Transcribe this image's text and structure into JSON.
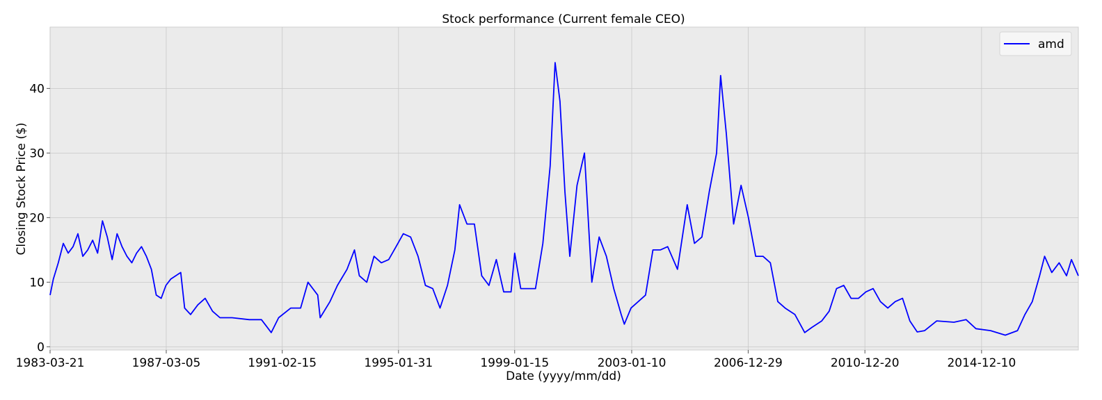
{
  "chart_data": {
    "type": "line",
    "title": "Stock performance (Current female CEO)",
    "xlabel": "Date (yyyy/mm/dd)",
    "ylabel": "Closing Stock Price ($)",
    "x_ticks": [
      "1983-03-21",
      "1987-03-05",
      "1991-02-15",
      "1995-01-31",
      "1999-01-15",
      "2003-01-10",
      "2006-12-29",
      "2010-12-20",
      "2014-12-10"
    ],
    "y_ticks": [
      0,
      10,
      20,
      30,
      40
    ],
    "ylim": [
      -0.5,
      49.5
    ],
    "xlim": [
      "1983-03-21",
      "2018-03-28"
    ],
    "grid": true,
    "legend_position": "top-right",
    "colors": {
      "line": "#0000ff",
      "plot_background": "#ebebeb",
      "grid": "#c8c8c8"
    },
    "series": [
      {
        "name": "amd",
        "points": [
          [
            "1983-03-21",
            8.0
          ],
          [
            "1983-05-01",
            10.5
          ],
          [
            "1983-07-01",
            13.0
          ],
          [
            "1983-09-01",
            16.0
          ],
          [
            "1983-11-01",
            14.5
          ],
          [
            "1984-01-01",
            15.5
          ],
          [
            "1984-03-01",
            17.5
          ],
          [
            "1984-05-01",
            14.0
          ],
          [
            "1984-07-01",
            15.0
          ],
          [
            "1984-09-01",
            16.5
          ],
          [
            "1984-11-01",
            14.5
          ],
          [
            "1985-01-01",
            19.5
          ],
          [
            "1985-03-01",
            17.0
          ],
          [
            "1985-05-01",
            13.5
          ],
          [
            "1985-07-01",
            17.5
          ],
          [
            "1985-09-01",
            15.5
          ],
          [
            "1985-11-01",
            14.0
          ],
          [
            "1986-01-01",
            13.0
          ],
          [
            "1986-03-01",
            14.5
          ],
          [
            "1986-05-01",
            15.5
          ],
          [
            "1986-07-01",
            14.0
          ],
          [
            "1986-09-01",
            12.0
          ],
          [
            "1986-11-01",
            8.0
          ],
          [
            "1987-01-01",
            7.5
          ],
          [
            "1987-03-01",
            9.5
          ],
          [
            "1987-05-01",
            10.5
          ],
          [
            "1987-07-01",
            11.0
          ],
          [
            "1987-09-01",
            11.5
          ],
          [
            "1987-10-20",
            6.0
          ],
          [
            "1988-01-01",
            5.0
          ],
          [
            "1988-04-01",
            6.5
          ],
          [
            "1988-07-01",
            7.5
          ],
          [
            "1988-10-01",
            5.5
          ],
          [
            "1989-01-01",
            4.5
          ],
          [
            "1989-06-01",
            4.5
          ],
          [
            "1990-01-01",
            4.2
          ],
          [
            "1990-06-01",
            4.2
          ],
          [
            "1990-10-01",
            2.2
          ],
          [
            "1991-01-01",
            4.5
          ],
          [
            "1991-06-01",
            6.0
          ],
          [
            "1991-10-01",
            6.0
          ],
          [
            "1992-01-01",
            10.0
          ],
          [
            "1992-05-01",
            8.0
          ],
          [
            "1992-06-01",
            4.5
          ],
          [
            "1992-10-01",
            7.0
          ],
          [
            "1993-01-01",
            9.5
          ],
          [
            "1993-05-01",
            12.0
          ],
          [
            "1993-08-01",
            15.0
          ],
          [
            "1993-10-01",
            11.0
          ],
          [
            "1994-01-01",
            10.0
          ],
          [
            "1994-04-01",
            14.0
          ],
          [
            "1994-07-01",
            13.0
          ],
          [
            "1994-10-01",
            13.5
          ],
          [
            "1995-01-01",
            15.5
          ],
          [
            "1995-04-01",
            17.5
          ],
          [
            "1995-07-01",
            17.0
          ],
          [
            "1995-10-01",
            14.0
          ],
          [
            "1996-01-01",
            9.5
          ],
          [
            "1996-04-01",
            9.0
          ],
          [
            "1996-07-01",
            6.0
          ],
          [
            "1996-10-01",
            9.5
          ],
          [
            "1997-01-01",
            15.0
          ],
          [
            "1997-03-01",
            22.0
          ],
          [
            "1997-06-01",
            19.0
          ],
          [
            "1997-09-01",
            19.0
          ],
          [
            "1997-12-01",
            11.0
          ],
          [
            "1998-03-01",
            9.5
          ],
          [
            "1998-06-01",
            13.5
          ],
          [
            "1998-09-01",
            8.5
          ],
          [
            "1998-12-01",
            8.5
          ],
          [
            "1999-01-15",
            14.5
          ],
          [
            "1999-04-01",
            9.0
          ],
          [
            "1999-07-01",
            9.0
          ],
          [
            "1999-10-01",
            9.0
          ],
          [
            "2000-01-01",
            16.0
          ],
          [
            "2000-04-01",
            28.0
          ],
          [
            "2000-06-01",
            44.0
          ],
          [
            "2000-08-01",
            38.0
          ],
          [
            "2000-10-01",
            24.0
          ],
          [
            "2000-12-01",
            14.0
          ],
          [
            "2001-03-01",
            25.0
          ],
          [
            "2001-06-01",
            30.0
          ],
          [
            "2001-09-01",
            10.0
          ],
          [
            "2001-12-01",
            17.0
          ],
          [
            "2002-03-01",
            14.0
          ],
          [
            "2002-06-01",
            9.0
          ],
          [
            "2002-09-01",
            5.0
          ],
          [
            "2002-10-10",
            3.5
          ],
          [
            "2003-01-01",
            6.0
          ],
          [
            "2003-04-01",
            7.0
          ],
          [
            "2003-07-01",
            8.0
          ],
          [
            "2003-10-01",
            15.0
          ],
          [
            "2004-01-01",
            15.0
          ],
          [
            "2004-04-01",
            15.5
          ],
          [
            "2004-08-01",
            12.0
          ],
          [
            "2004-12-01",
            22.0
          ],
          [
            "2005-03-01",
            16.0
          ],
          [
            "2005-06-01",
            17.0
          ],
          [
            "2005-09-01",
            24.0
          ],
          [
            "2005-12-01",
            30.0
          ],
          [
            "2006-01-20",
            42.0
          ],
          [
            "2006-04-01",
            33.0
          ],
          [
            "2006-07-01",
            19.0
          ],
          [
            "2006-10-01",
            25.0
          ],
          [
            "2007-01-01",
            20.0
          ],
          [
            "2007-04-01",
            14.0
          ],
          [
            "2007-07-01",
            14.0
          ],
          [
            "2007-10-01",
            13.0
          ],
          [
            "2008-01-01",
            7.0
          ],
          [
            "2008-04-01",
            6.0
          ],
          [
            "2008-08-01",
            5.0
          ],
          [
            "2008-12-01",
            2.2
          ],
          [
            "2009-03-01",
            3.0
          ],
          [
            "2009-07-01",
            4.0
          ],
          [
            "2009-10-01",
            5.5
          ],
          [
            "2010-01-01",
            9.0
          ],
          [
            "2010-04-01",
            9.5
          ],
          [
            "2010-07-01",
            7.5
          ],
          [
            "2010-10-01",
            7.5
          ],
          [
            "2011-01-01",
            8.5
          ],
          [
            "2011-04-01",
            9.0
          ],
          [
            "2011-07-01",
            7.0
          ],
          [
            "2011-10-01",
            6.0
          ],
          [
            "2012-01-01",
            7.0
          ],
          [
            "2012-04-01",
            7.5
          ],
          [
            "2012-07-01",
            4.0
          ],
          [
            "2012-10-01",
            2.3
          ],
          [
            "2013-01-01",
            2.5
          ],
          [
            "2013-06-01",
            4.0
          ],
          [
            "2014-01-01",
            3.8
          ],
          [
            "2014-06-01",
            4.2
          ],
          [
            "2014-10-01",
            2.8
          ],
          [
            "2015-04-01",
            2.5
          ],
          [
            "2015-10-01",
            1.8
          ],
          [
            "2016-03-01",
            2.5
          ],
          [
            "2016-06-01",
            5.0
          ],
          [
            "2016-09-01",
            7.0
          ],
          [
            "2016-12-01",
            11.0
          ],
          [
            "2017-02-01",
            14.0
          ],
          [
            "2017-05-01",
            11.5
          ],
          [
            "2017-08-01",
            13.0
          ],
          [
            "2017-11-01",
            11.0
          ],
          [
            "2018-01-01",
            13.5
          ],
          [
            "2018-03-28",
            11.0
          ]
        ]
      }
    ]
  }
}
